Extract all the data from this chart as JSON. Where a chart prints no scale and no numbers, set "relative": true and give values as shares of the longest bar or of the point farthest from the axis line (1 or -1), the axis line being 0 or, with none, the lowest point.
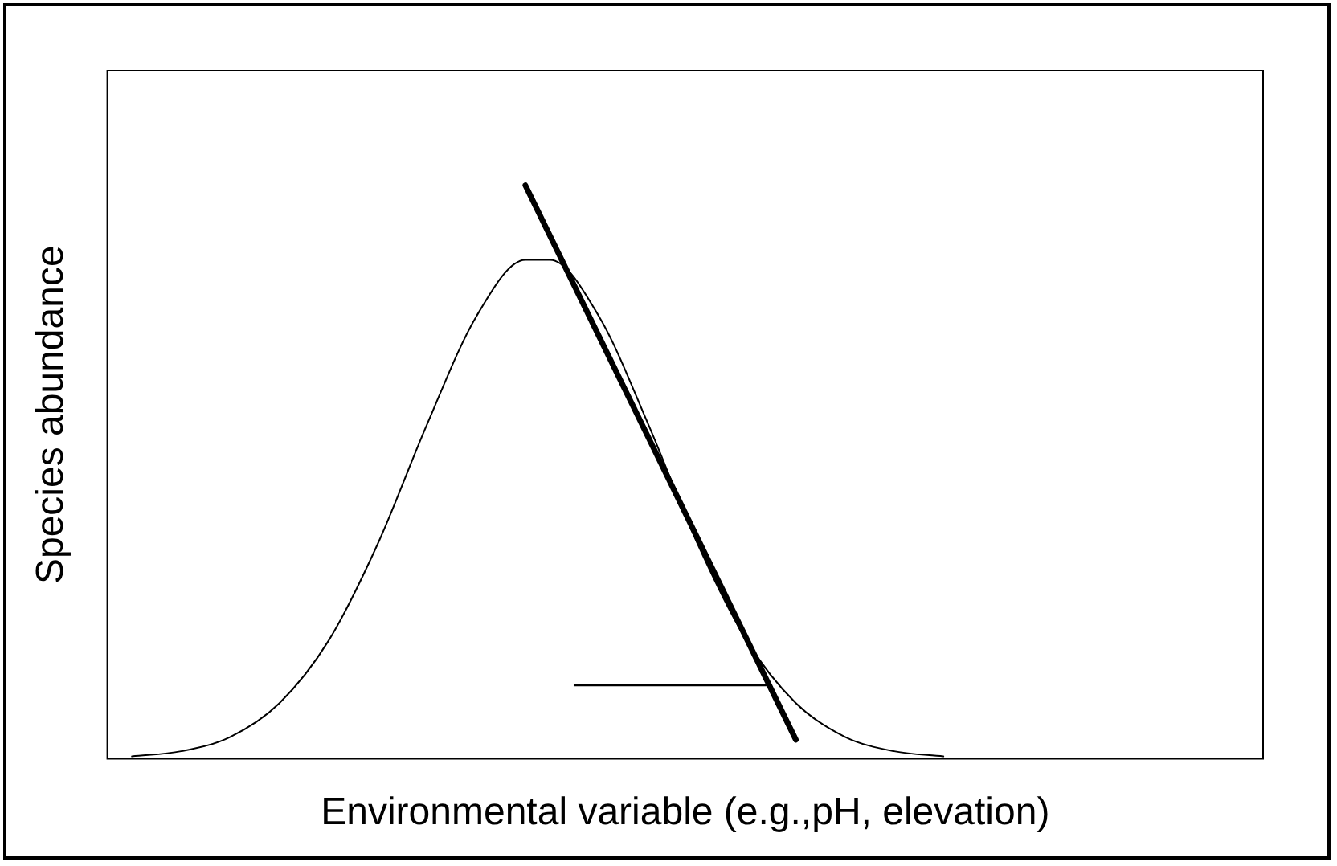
{
  "chart_data": {
    "type": "line",
    "relative": true,
    "xlabel": "Environmental variable (e.g.,pH, elevation)",
    "ylabel": "Species abundance",
    "categories": [
      null,
      null,
      null,
      null,
      null,
      null,
      null,
      null,
      null,
      null,
      null,
      null,
      null,
      null,
      null,
      null,
      null,
      null,
      null,
      null,
      null,
      null,
      null,
      null,
      null,
      null,
      null,
      null,
      null,
      null,
      null,
      null,
      null,
      null,
      null,
      null,
      null,
      null,
      null,
      null,
      null,
      null,
      null,
      null,
      null,
      null,
      null,
      null
    ],
    "series": [
      {
        "color": "#000000",
        "values": [
          null,
          0.004,
          null,
          0.013,
          null,
          0.038,
          null,
          0.097,
          null,
          0.206,
          null,
          0.375,
          null,
          0.583,
          null,
          0.771,
          null,
          0.87,
          0.87,
          null,
          0.771,
          null,
          0.583,
          null,
          0.375,
          null,
          0.206,
          null,
          0.097,
          null,
          0.038,
          null,
          0.013,
          null,
          0.004,
          null,
          null,
          null,
          null,
          null,
          null,
          null,
          null,
          null,
          null,
          null,
          null,
          null
        ]
      },
      {
        "color": "#000000",
        "values": [
          null,
          null,
          null,
          null,
          null,
          null,
          null,
          null,
          null,
          null,
          null,
          null,
          null,
          null,
          null,
          null,
          null,
          1.0,
          null,
          null,
          null,
          null,
          null,
          null,
          null,
          null,
          null,
          null,
          0.033,
          null,
          null,
          null,
          null,
          null,
          null,
          null,
          null,
          null,
          null,
          null,
          null,
          null,
          null,
          null,
          null,
          null,
          null,
          null
        ]
      },
      {
        "color": "#000000",
        "values": [
          null,
          null,
          null,
          null,
          null,
          null,
          null,
          null,
          null,
          null,
          null,
          null,
          null,
          null,
          null,
          null,
          null,
          null,
          null,
          0.128,
          null,
          null,
          null,
          null,
          null,
          null,
          null,
          0.128,
          null,
          null,
          null,
          null,
          null,
          null,
          null,
          null,
          null,
          null,
          null,
          null,
          null,
          null,
          null,
          null,
          null,
          null,
          null,
          null
        ]
      }
    ],
    "marker": "none",
    "grid": false,
    "legend": false
  }
}
